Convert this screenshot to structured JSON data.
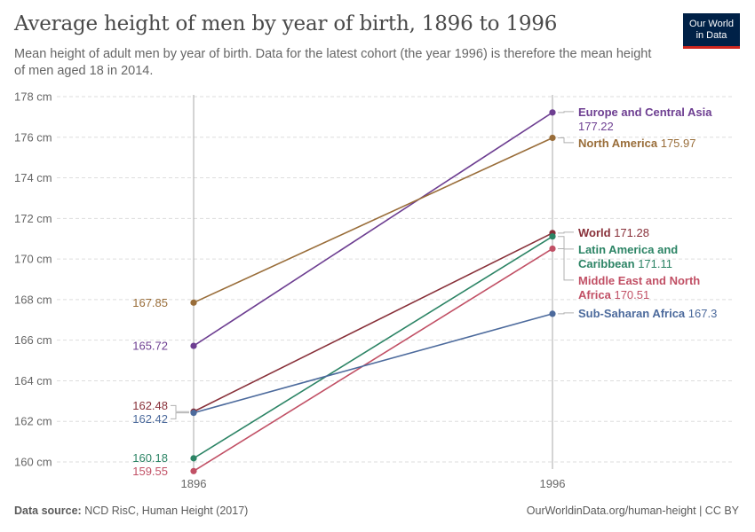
{
  "header": {
    "title": "Average height of men by year of birth, 1896 to 1996",
    "subtitle": "Mean height of adult men by year of birth. Data for the latest cohort (the year 1996) is therefore the mean height of men aged 18 in 2014."
  },
  "logo": {
    "line1": "Our World",
    "line2": "in Data",
    "bg": "#002147",
    "accent": "#ce261e"
  },
  "footer": {
    "source_label": "Data source:",
    "source_text": "NCD RisC, Human Height (2017)",
    "url_license": "OurWorldinData.org/human-height | CC BY"
  },
  "chart_data": {
    "type": "line",
    "chart_style": "slope",
    "x": [
      1896,
      1996
    ],
    "x_tick_labels": [
      "1896",
      "1996"
    ],
    "y_unit": "cm",
    "ylim": [
      159.5,
      178
    ],
    "y_ticks": [
      160,
      162,
      164,
      166,
      168,
      170,
      172,
      174,
      176,
      178
    ],
    "y_tick_labels": [
      "160 cm",
      "162 cm",
      "164 cm",
      "166 cm",
      "168 cm",
      "170 cm",
      "172 cm",
      "174 cm",
      "176 cm",
      "178 cm"
    ],
    "grid": true,
    "series": [
      {
        "name": "Europe and Central Asia",
        "label_lines": [
          "Europe and Central Asia"
        ],
        "value_on_new_line": true,
        "values": [
          165.72,
          177.22
        ],
        "start_label": "165.72",
        "end_label": "177.22",
        "color": "#6d3e91"
      },
      {
        "name": "North America",
        "label_lines": [
          "North America"
        ],
        "value_on_new_line": false,
        "values": [
          167.85,
          175.97
        ],
        "start_label": "167.85",
        "end_label": "175.97",
        "color": "#996d39"
      },
      {
        "name": "World",
        "label_lines": [
          "World"
        ],
        "value_on_new_line": false,
        "values": [
          162.48,
          171.28
        ],
        "start_label": "162.48",
        "end_label": "171.28",
        "color": "#883039"
      },
      {
        "name": "Latin America and Caribbean",
        "label_lines": [
          "Latin America and",
          "Caribbean"
        ],
        "value_on_new_line": false,
        "values": [
          160.18,
          171.11
        ],
        "start_label": "160.18",
        "end_label": "171.11",
        "color": "#2c8465"
      },
      {
        "name": "Middle East and North Africa",
        "label_lines": [
          "Middle East and North",
          "Africa"
        ],
        "value_on_new_line": false,
        "values": [
          159.55,
          170.51
        ],
        "start_label": "159.55",
        "end_label": "170.51",
        "color": "#c15065"
      },
      {
        "name": "Sub-Saharan Africa",
        "label_lines": [
          "Sub-Saharan Africa"
        ],
        "value_on_new_line": false,
        "values": [
          162.42,
          167.3
        ],
        "start_label": "162.42",
        "end_label": "167.3",
        "color": "#4c6a9c"
      }
    ]
  }
}
